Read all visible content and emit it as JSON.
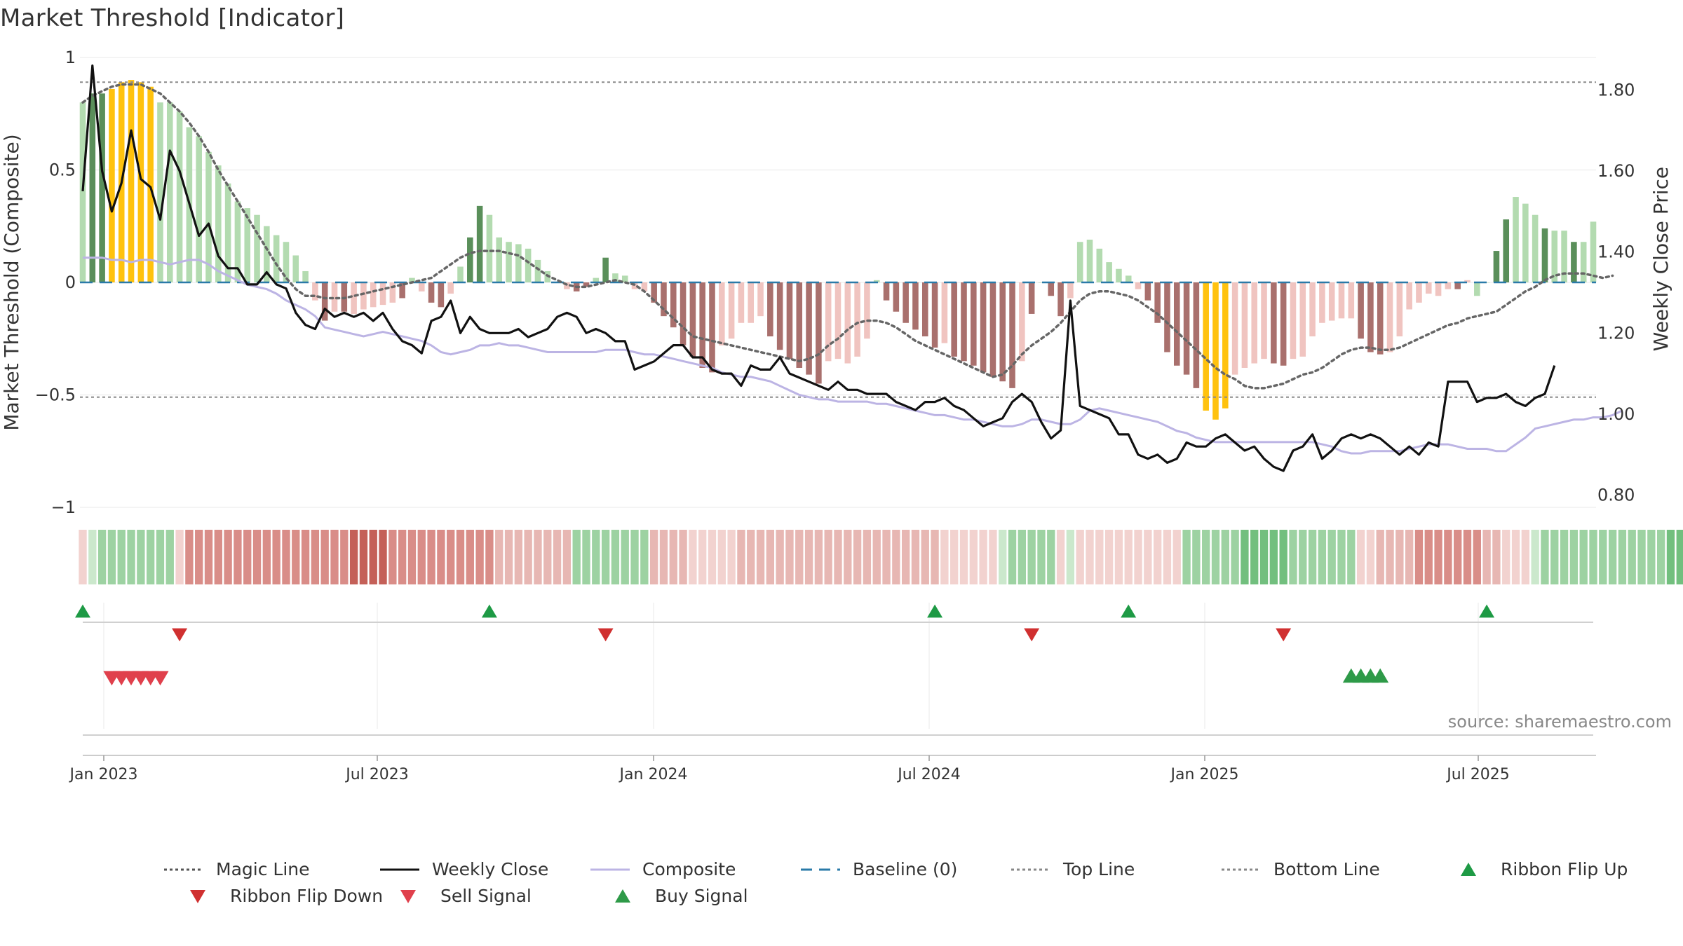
{
  "title": "Market Threshold [Indicator]",
  "source": "source: sharemaestro.com",
  "colors": {
    "dark_green": "#5a8f5a",
    "light_green": "#b3dbb0",
    "dark_red": "#a9706d",
    "light_red": "#f0c4c0",
    "gold": "#ffc20e",
    "composite": "#bcb4e4",
    "weekly_close": "#111111",
    "magic_line": "#666666",
    "baseline": "#2a7aa8",
    "buy": "#2e9a48",
    "sell": "#e0404c",
    "flip_up": "#1e9a45",
    "flip_down": "#d03030"
  },
  "chart_data": {
    "type": "bar",
    "title": "Market Threshold [Indicator]",
    "ylabel": "Market Threshold (Composite)",
    "y2label": "Weekly Close Price",
    "ylim": [
      -1,
      1
    ],
    "y2lim": [
      0.77,
      1.88
    ],
    "y_ticks": [
      1,
      0.5,
      0,
      -0.5,
      -1
    ],
    "y_tick_labels": [
      "1",
      "0.5",
      "0",
      "−0.5",
      "−1"
    ],
    "y2_ticks": [
      1.8,
      1.6,
      1.4,
      1.2,
      1.0,
      0.8
    ],
    "y2_tick_labels": [
      "1.80",
      "1.60",
      "1.40",
      "1.20",
      "1.00",
      "0.80"
    ],
    "x_ticks": [
      "Jan 2023",
      "Jul 2023",
      "Jan 2024",
      "Jul 2024",
      "Jan 2025",
      "Jul 2025"
    ],
    "top_line": 0.89,
    "bottom_line": -0.51,
    "grid": false,
    "legend_position": "bottom",
    "bars": [
      0.8,
      0.84,
      0.84,
      0.86,
      0.89,
      0.9,
      0.89,
      0.87,
      0.8,
      0.8,
      0.76,
      0.69,
      0.65,
      0.58,
      0.52,
      0.44,
      0.36,
      0.33,
      0.3,
      0.25,
      0.21,
      0.18,
      0.12,
      0.05,
      -0.08,
      -0.17,
      -0.13,
      -0.13,
      -0.14,
      -0.12,
      -0.11,
      -0.1,
      -0.09,
      -0.07,
      0.02,
      -0.04,
      -0.09,
      -0.11,
      -0.05,
      0.07,
      0.2,
      0.34,
      0.3,
      0.2,
      0.18,
      0.17,
      0.15,
      0.1,
      0.05,
      0.0,
      -0.03,
      -0.04,
      -0.02,
      0.02,
      0.11,
      0.04,
      0.03,
      -0.03,
      -0.04,
      -0.09,
      -0.15,
      -0.2,
      -0.28,
      -0.33,
      -0.38,
      -0.4,
      -0.28,
      -0.25,
      -0.18,
      -0.18,
      -0.15,
      -0.24,
      -0.3,
      -0.34,
      -0.38,
      -0.41,
      -0.45,
      -0.35,
      -0.34,
      -0.36,
      -0.33,
      -0.25,
      0.01,
      -0.08,
      -0.13,
      -0.18,
      -0.21,
      -0.24,
      -0.29,
      -0.27,
      -0.33,
      -0.35,
      -0.37,
      -0.4,
      -0.42,
      -0.44,
      -0.47,
      -0.35,
      -0.14,
      0.0,
      -0.06,
      -0.15,
      -0.07,
      0.18,
      0.19,
      0.15,
      0.09,
      0.06,
      0.03,
      -0.03,
      -0.08,
      -0.18,
      -0.31,
      -0.37,
      -0.41,
      -0.47,
      -0.57,
      -0.61,
      -0.56,
      -0.41,
      -0.38,
      -0.36,
      -0.34,
      -0.36,
      -0.37,
      -0.34,
      -0.33,
      -0.24,
      -0.18,
      -0.17,
      -0.16,
      -0.16,
      -0.25,
      -0.31,
      -0.32,
      -0.31,
      -0.24,
      -0.12,
      -0.09,
      -0.05,
      -0.06,
      -0.03,
      -0.03,
      0.01,
      -0.06,
      0.0,
      0.14,
      0.28,
      0.38,
      0.35,
      0.3,
      0.24,
      0.23,
      0.23,
      0.18,
      0.18,
      0.27
    ],
    "bar_colors": [
      "lg",
      "dg",
      "dg",
      "gold",
      "gold",
      "gold",
      "gold",
      "gold",
      "lg",
      "lg",
      "lg",
      "lg",
      "lg",
      "lg",
      "lg",
      "lg",
      "lg",
      "lg",
      "lg",
      "lg",
      "lg",
      "lg",
      "lg",
      "lg",
      "lr",
      "dr",
      "lr",
      "dr",
      "lr",
      "lr",
      "lr",
      "lr",
      "lr",
      "dr",
      "lg",
      "lr",
      "dr",
      "dr",
      "lr",
      "lg",
      "dg",
      "dg",
      "lg",
      "lg",
      "lg",
      "lg",
      "lg",
      "lg",
      "lg",
      "lg",
      "lr",
      "dr",
      "dr",
      "lg",
      "dg",
      "lg",
      "lg",
      "lr",
      "lr",
      "dr",
      "dr",
      "dr",
      "dr",
      "dr",
      "dr",
      "dr",
      "lr",
      "lr",
      "lr",
      "lr",
      "lr",
      "dr",
      "dr",
      "dr",
      "dr",
      "dr",
      "dr",
      "lr",
      "lr",
      "lr",
      "lr",
      "lr",
      "lg",
      "dr",
      "dr",
      "dr",
      "dr",
      "dr",
      "dr",
      "lr",
      "dr",
      "dr",
      "dr",
      "dr",
      "dr",
      "dr",
      "dr",
      "lr",
      "dr",
      "lg",
      "dr",
      "dr",
      "lr",
      "lg",
      "lg",
      "lg",
      "lg",
      "lg",
      "lg",
      "lr",
      "dr",
      "dr",
      "dr",
      "dr",
      "dr",
      "dr",
      "gold",
      "gold",
      "gold",
      "lr",
      "lr",
      "lr",
      "lr",
      "dr",
      "dr",
      "lr",
      "lr",
      "lr",
      "lr",
      "lr",
      "lr",
      "lr",
      "dr",
      "dr",
      "dr",
      "lr",
      "lr",
      "lr",
      "lr",
      "lr",
      "lr",
      "lr",
      "dr",
      "lr",
      "lg",
      "lg",
      "dg",
      "dg",
      "lg",
      "lg",
      "lg",
      "dg",
      "lg",
      "lg",
      "dg"
    ],
    "composite": [
      0.11,
      0.11,
      0.11,
      0.1,
      0.1,
      0.09,
      0.1,
      0.1,
      0.09,
      0.08,
      0.09,
      0.1,
      0.1,
      0.08,
      0.05,
      0.03,
      0.01,
      -0.01,
      -0.02,
      -0.03,
      -0.05,
      -0.08,
      -0.1,
      -0.12,
      -0.15,
      -0.2,
      -0.21,
      -0.22,
      -0.23,
      -0.24,
      -0.23,
      -0.22,
      -0.23,
      -0.24,
      -0.25,
      -0.26,
      -0.28,
      -0.31,
      -0.32,
      -0.31,
      -0.3,
      -0.28,
      -0.28,
      -0.27,
      -0.28,
      -0.28,
      -0.29,
      -0.3,
      -0.31,
      -0.31,
      -0.31,
      -0.31,
      -0.31,
      -0.31,
      -0.3,
      -0.3,
      -0.3,
      -0.31,
      -0.32,
      -0.32,
      -0.33,
      -0.34,
      -0.35,
      -0.36,
      -0.37,
      -0.38,
      -0.4,
      -0.41,
      -0.42,
      -0.42,
      -0.43,
      -0.44,
      -0.46,
      -0.48,
      -0.5,
      -0.51,
      -0.52,
      -0.52,
      -0.53,
      -0.53,
      -0.53,
      -0.53,
      -0.54,
      -0.54,
      -0.55,
      -0.56,
      -0.57,
      -0.58,
      -0.59,
      -0.59,
      -0.6,
      -0.61,
      -0.61,
      -0.62,
      -0.63,
      -0.64,
      -0.64,
      -0.63,
      -0.61,
      -0.61,
      -0.62,
      -0.63,
      -0.63,
      -0.61,
      -0.57,
      -0.56,
      -0.57,
      -0.58,
      -0.59,
      -0.6,
      -0.61,
      -0.62,
      -0.64,
      -0.66,
      -0.67,
      -0.69,
      -0.7,
      -0.71,
      -0.71,
      -0.71,
      -0.71,
      -0.71,
      -0.71,
      -0.71,
      -0.71,
      -0.71,
      -0.71,
      -0.71,
      -0.72,
      -0.73,
      -0.75,
      -0.76,
      -0.76,
      -0.75,
      -0.75,
      -0.75,
      -0.75,
      -0.74,
      -0.73,
      -0.72,
      -0.72,
      -0.72,
      -0.73,
      -0.74,
      -0.74,
      -0.74,
      -0.75,
      -0.75,
      -0.72,
      -0.69,
      -0.65,
      -0.64,
      -0.63,
      -0.62,
      -0.61,
      -0.61,
      -0.6,
      -0.6,
      -0.59,
      -0.57
    ],
    "magic_line": [
      0.8,
      0.83,
      0.85,
      0.87,
      0.88,
      0.88,
      0.88,
      0.86,
      0.84,
      0.8,
      0.76,
      0.71,
      0.65,
      0.58,
      0.5,
      0.43,
      0.36,
      0.29,
      0.22,
      0.15,
      0.08,
      0.02,
      -0.03,
      -0.06,
      -0.06,
      -0.07,
      -0.07,
      -0.07,
      -0.06,
      -0.05,
      -0.04,
      -0.03,
      -0.02,
      -0.01,
      0.0,
      0.01,
      0.02,
      0.05,
      0.08,
      0.11,
      0.13,
      0.14,
      0.14,
      0.14,
      0.13,
      0.12,
      0.09,
      0.06,
      0.03,
      0.01,
      -0.01,
      -0.02,
      -0.02,
      -0.01,
      0.0,
      0.01,
      0.0,
      -0.01,
      -0.04,
      -0.08,
      -0.12,
      -0.16,
      -0.2,
      -0.24,
      -0.25,
      -0.26,
      -0.27,
      -0.28,
      -0.29,
      -0.3,
      -0.31,
      -0.32,
      -0.33,
      -0.34,
      -0.35,
      -0.34,
      -0.32,
      -0.28,
      -0.25,
      -0.21,
      -0.18,
      -0.17,
      -0.17,
      -0.18,
      -0.2,
      -0.23,
      -0.26,
      -0.28,
      -0.3,
      -0.32,
      -0.34,
      -0.36,
      -0.38,
      -0.4,
      -0.42,
      -0.41,
      -0.37,
      -0.32,
      -0.28,
      -0.25,
      -0.22,
      -0.18,
      -0.13,
      -0.08,
      -0.05,
      -0.04,
      -0.04,
      -0.05,
      -0.06,
      -0.08,
      -0.11,
      -0.14,
      -0.18,
      -0.22,
      -0.26,
      -0.3,
      -0.34,
      -0.38,
      -0.41,
      -0.43,
      -0.46,
      -0.47,
      -0.47,
      -0.46,
      -0.45,
      -0.43,
      -0.41,
      -0.4,
      -0.38,
      -0.35,
      -0.32,
      -0.3,
      -0.29,
      -0.29,
      -0.3,
      -0.3,
      -0.29,
      -0.27,
      -0.25,
      -0.23,
      -0.21,
      -0.19,
      -0.18,
      -0.16,
      -0.15,
      -0.14,
      -0.13,
      -0.1,
      -0.07,
      -0.04,
      -0.02,
      0.01,
      0.03,
      0.04,
      0.04,
      0.04,
      0.03,
      0.02,
      0.03
    ],
    "weekly_close": [
      1.55,
      1.86,
      1.6,
      1.5,
      1.57,
      1.7,
      1.58,
      1.56,
      1.48,
      1.65,
      1.6,
      1.52,
      1.44,
      1.47,
      1.39,
      1.36,
      1.36,
      1.32,
      1.32,
      1.35,
      1.32,
      1.31,
      1.25,
      1.22,
      1.21,
      1.26,
      1.24,
      1.25,
      1.24,
      1.25,
      1.23,
      1.25,
      1.21,
      1.18,
      1.17,
      1.15,
      1.23,
      1.24,
      1.28,
      1.2,
      1.24,
      1.21,
      1.2,
      1.2,
      1.2,
      1.21,
      1.19,
      1.2,
      1.21,
      1.24,
      1.25,
      1.24,
      1.2,
      1.21,
      1.2,
      1.18,
      1.18,
      1.11,
      1.12,
      1.13,
      1.15,
      1.17,
      1.17,
      1.14,
      1.14,
      1.11,
      1.1,
      1.1,
      1.07,
      1.12,
      1.11,
      1.11,
      1.14,
      1.1,
      1.09,
      1.08,
      1.07,
      1.06,
      1.08,
      1.06,
      1.06,
      1.05,
      1.05,
      1.05,
      1.03,
      1.02,
      1.01,
      1.03,
      1.03,
      1.04,
      1.02,
      1.01,
      0.99,
      0.97,
      0.98,
      0.99,
      1.03,
      1.05,
      1.03,
      0.98,
      0.94,
      0.96,
      1.28,
      1.02,
      1.01,
      1.0,
      0.99,
      0.95,
      0.95,
      0.9,
      0.89,
      0.9,
      0.88,
      0.89,
      0.93,
      0.92,
      0.92,
      0.94,
      0.95,
      0.93,
      0.91,
      0.92,
      0.89,
      0.87,
      0.86,
      0.91,
      0.92,
      0.95,
      0.89,
      0.91,
      0.94,
      0.95,
      0.94,
      0.95,
      0.94,
      0.92,
      0.9,
      0.92,
      0.9,
      0.93,
      0.92,
      1.08,
      1.08,
      1.08,
      1.03,
      1.04,
      1.04,
      1.05,
      1.03,
      1.02,
      1.04,
      1.05,
      1.12
    ],
    "ribbon": [
      -1,
      1,
      2,
      2,
      2,
      2,
      2,
      2,
      2,
      2,
      -1,
      -3,
      -3,
      -3,
      -3,
      -3,
      -3,
      -3,
      -3,
      -3,
      -3,
      -3,
      -3,
      -3,
      -3,
      -3,
      -3,
      -3,
      -4,
      -4,
      -4,
      -4,
      -3,
      -3,
      -3,
      -3,
      -3,
      -3,
      -3,
      -3,
      -3,
      -3,
      -3,
      -2,
      -2,
      -2,
      -2,
      -2,
      -2,
      -2,
      -2,
      2,
      2,
      2,
      2,
      2,
      2,
      2,
      2,
      -2,
      -2,
      -2,
      -2,
      -1,
      -1,
      -1,
      -1,
      -1,
      -2,
      -2,
      -2,
      -2,
      -2,
      -2,
      -2,
      -2,
      -2,
      -2,
      -2,
      -2,
      -2,
      -2,
      -2,
      -2,
      -2,
      -2,
      -2,
      -2,
      -2,
      -1,
      -1,
      -1,
      -1,
      -1,
      -1,
      1,
      2,
      2,
      2,
      2,
      2,
      -1,
      1,
      -1,
      -1,
      -1,
      -1,
      -1,
      -1,
      -1,
      -1,
      -1,
      -1,
      -1,
      2,
      2,
      2,
      2,
      2,
      2,
      3,
      3,
      3,
      3,
      3,
      2,
      2,
      2,
      2,
      2,
      2,
      2,
      -1,
      -1,
      -2,
      -2,
      -2,
      -2,
      -3,
      -3,
      -3,
      -3,
      -3,
      -3,
      -3,
      -2,
      -2,
      -1,
      -1,
      -1,
      1,
      2,
      2,
      2,
      2,
      2,
      2,
      2,
      2,
      2,
      2,
      2,
      2,
      2,
      3,
      3,
      3,
      3,
      3,
      3,
      3,
      4,
      4,
      4,
      4,
      3,
      3,
      3,
      2,
      2,
      2,
      2
    ],
    "ribbon_flip_up_weeks": [
      0,
      42,
      88,
      108,
      145
    ],
    "ribbon_flip_down_weeks": [
      10,
      54,
      98,
      124
    ],
    "sell_signal_weeks": [
      3,
      4,
      5,
      6,
      7,
      8
    ],
    "buy_signal_weeks": [
      131,
      132,
      133,
      134
    ],
    "series": [
      {
        "name": "Magic Line"
      },
      {
        "name": "Weekly Close"
      },
      {
        "name": "Composite"
      },
      {
        "name": "Baseline (0)"
      },
      {
        "name": "Top Line"
      },
      {
        "name": "Bottom Line"
      },
      {
        "name": "Ribbon Flip Up"
      },
      {
        "name": "Ribbon Flip Down"
      },
      {
        "name": "Sell Signal"
      },
      {
        "name": "Buy Signal"
      }
    ]
  },
  "legend": [
    {
      "label": "Magic Line",
      "marker": "dotted-line",
      "color": "#555555"
    },
    {
      "label": "Weekly Close",
      "marker": "solid-line",
      "color": "#111111"
    },
    {
      "label": "Composite",
      "marker": "solid-line",
      "color": "#bcb4e4"
    },
    {
      "label": "Baseline (0)",
      "marker": "dashed-line",
      "color": "#2a7aa8"
    },
    {
      "label": "Top Line",
      "marker": "dotted-line",
      "color": "#888888"
    },
    {
      "label": "Bottom Line",
      "marker": "dotted-line",
      "color": "#888888"
    },
    {
      "label": "Ribbon Flip Up",
      "marker": "triangle-up",
      "color": "#1e9a45"
    },
    {
      "label": "Ribbon Flip Down",
      "marker": "triangle-down",
      "color": "#d03030"
    },
    {
      "label": "Sell Signal",
      "marker": "triangle-down",
      "color": "#e0404c"
    },
    {
      "label": "Buy Signal",
      "marker": "triangle-up",
      "color": "#2e9a48"
    }
  ]
}
